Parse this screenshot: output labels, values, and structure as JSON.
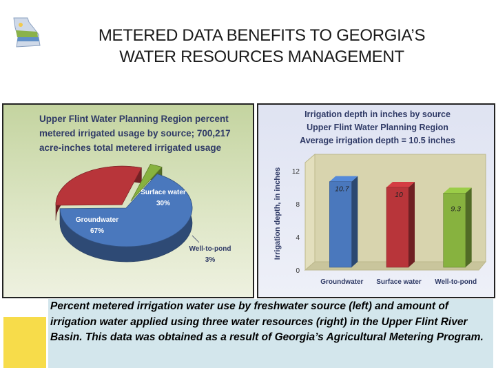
{
  "slide": {
    "title_line1": "METERED DATA BENEFITS TO GEORGIA’S",
    "title_line2": "WATER RESOURCES MANAGEMENT",
    "caption": "Percent metered irrigation water use by freshwater source (left) and amount of irrigation water applied using three water resources (right) in the Upper Flint River Basin.  This data was obtained as a result of Georgia’s Agricultural Metering Program."
  },
  "colors": {
    "groundwater": "#4a78bd",
    "surface_water": "#b8353a",
    "well_to_pond": "#87b23f",
    "caption_bg": "#d3e6ec",
    "accent_yellow": "#f7dc4a"
  },
  "chart_data": [
    {
      "type": "pie",
      "title_lines": [
        "Upper Flint Water Planning Region percent",
        "metered irrigated usage by source; 700,217",
        "acre-inches total metered irrigated usage"
      ],
      "slices": [
        {
          "label": "Groundwater",
          "value": 67,
          "value_label": "67%"
        },
        {
          "label": "Surface water",
          "value": 30,
          "value_label": "30%"
        },
        {
          "label": "Well-to-pond",
          "value": 3,
          "value_label": "3%"
        }
      ]
    },
    {
      "type": "bar",
      "title_lines": [
        "Irrigation depth in inches by source",
        "Upper Flint Water Planning Region",
        "Average irrigation depth = 10.5 inches"
      ],
      "categories": [
        "Groundwater",
        "Surface water",
        "Well-to-pond"
      ],
      "values": [
        10.7,
        10,
        9.3
      ],
      "value_labels": [
        "10.7",
        "10",
        "9.3"
      ],
      "ylabel": "Irrigation depth, in inches",
      "ylim": [
        0,
        12
      ],
      "yticks": [
        0,
        4,
        8,
        12
      ]
    }
  ]
}
